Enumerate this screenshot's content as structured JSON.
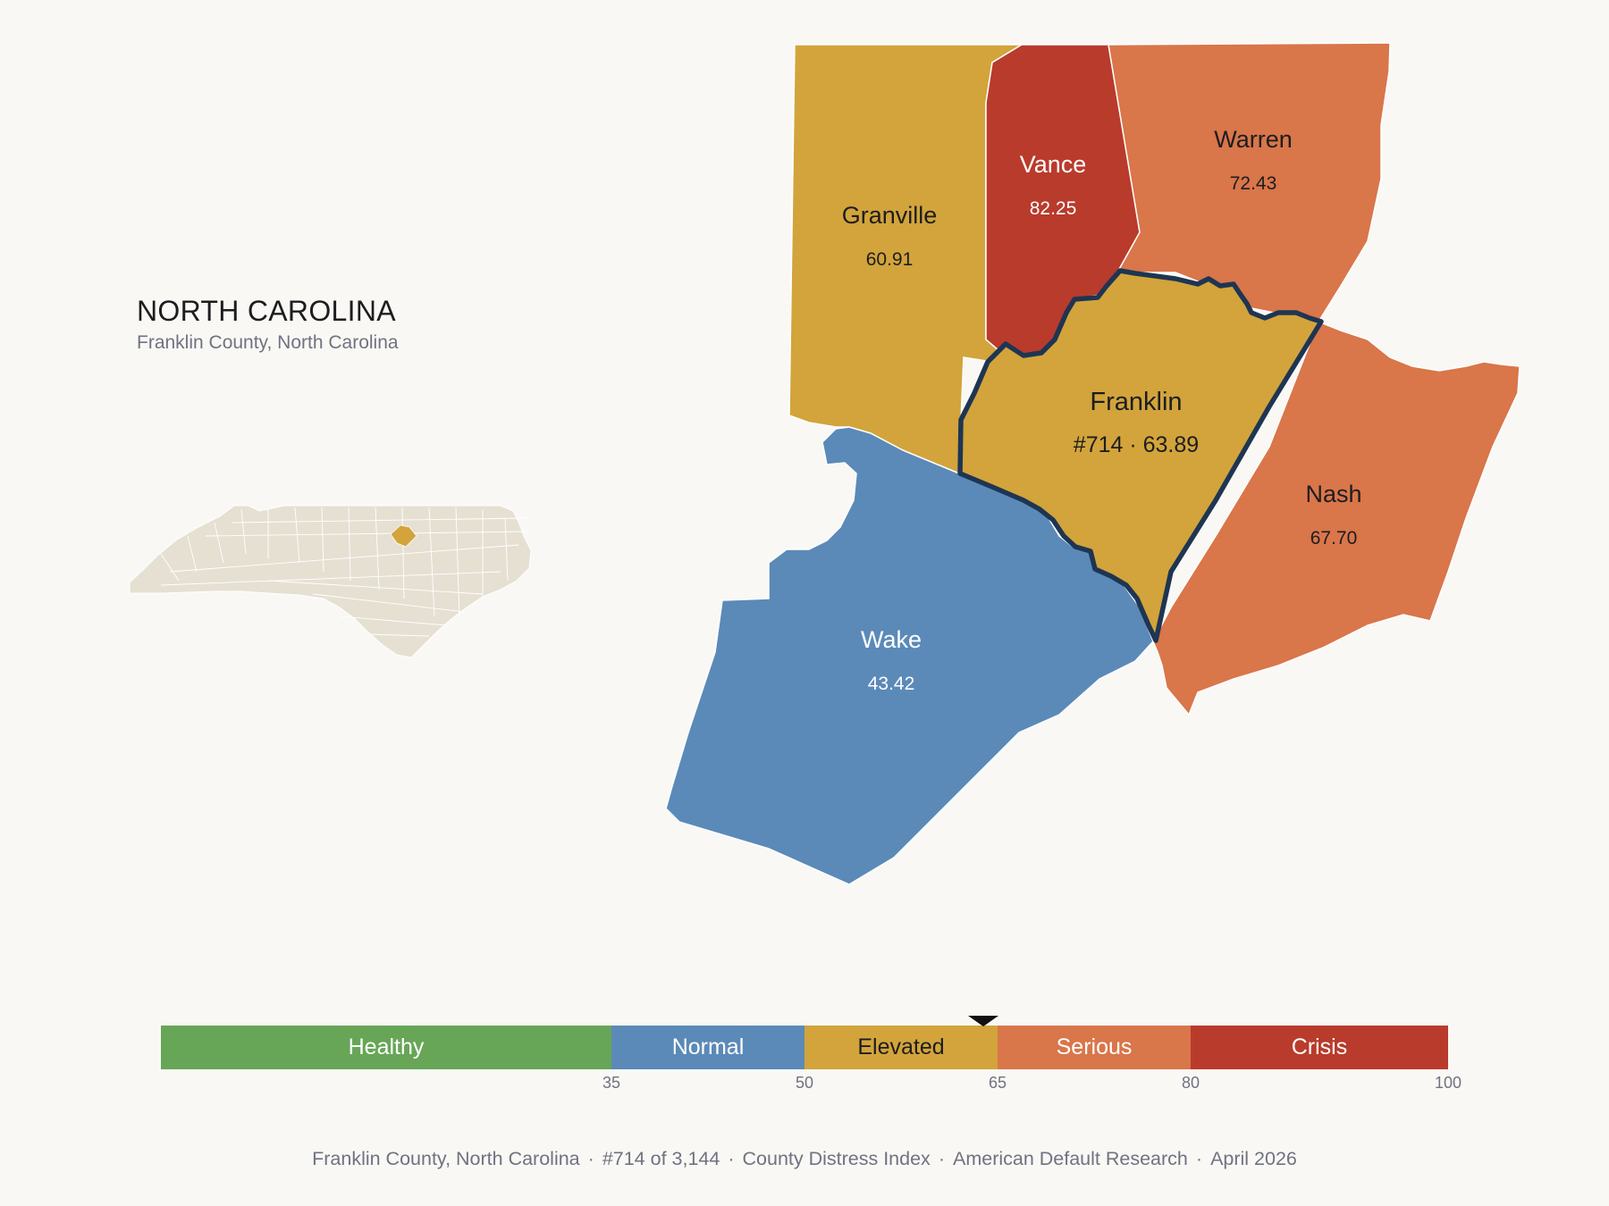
{
  "header": {
    "state": "NORTH CAROLINA",
    "subtitle": "Franklin County, North Carolina"
  },
  "colors": {
    "healthy": "#67a657",
    "normal": "#5b8ab8",
    "elevated": "#d2a43b",
    "serious": "#d9764a",
    "crisis": "#b93b2c",
    "outline": "#1e3553",
    "inset_fill": "#e6e0d3",
    "background": "#f9f8f5"
  },
  "counties": [
    {
      "name": "Granville",
      "value": "60.91",
      "category": "elevated"
    },
    {
      "name": "Vance",
      "value": "82.25",
      "category": "crisis"
    },
    {
      "name": "Warren",
      "value": "72.43",
      "category": "serious"
    },
    {
      "name": "Franklin",
      "value": "#714 · 63.89",
      "category": "elevated",
      "highlighted": true
    },
    {
      "name": "Nash",
      "value": "67.70",
      "category": "serious"
    },
    {
      "name": "Wake",
      "value": "43.42",
      "category": "normal"
    }
  ],
  "inset": {
    "label": "north-carolina-inset-map",
    "highlight": "Franklin"
  },
  "legend": {
    "bands": [
      {
        "label": "Healthy",
        "from": 0,
        "to": 35,
        "color": "#67a657"
      },
      {
        "label": "Normal",
        "from": 35,
        "to": 50,
        "color": "#5b8ab8"
      },
      {
        "label": "Elevated",
        "from": 50,
        "to": 65,
        "color": "#d2a43b"
      },
      {
        "label": "Serious",
        "from": 65,
        "to": 80,
        "color": "#d9764a"
      },
      {
        "label": "Crisis",
        "from": 80,
        "to": 100,
        "color": "#b93b2c"
      }
    ],
    "ticks": [
      "35",
      "50",
      "65",
      "80",
      "100"
    ],
    "marker_value": 63.89
  },
  "footer": {
    "items": [
      "Franklin County, North Carolina",
      "#714 of 3,144",
      "County Distress Index",
      "American Default Research",
      "April 2026"
    ]
  }
}
